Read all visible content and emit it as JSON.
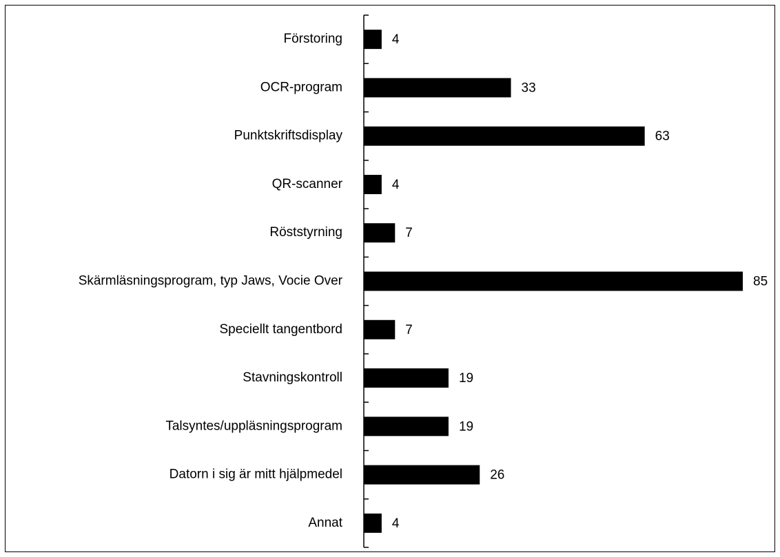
{
  "chart_data": {
    "type": "barh",
    "categories": [
      "Förstoring",
      "OCR-program",
      "Punktskriftsdisplay",
      "QR-scanner",
      "Röststyrning",
      "Skärmläsningsprogram, typ Jaws, Vocie Over",
      "Speciellt tangentbord",
      "Stavningskontroll",
      "Talsyntes/uppläsningsprogram",
      "Datorn i sig är mitt hjälpmedel",
      "Annat"
    ],
    "values": [
      4,
      33,
      63,
      4,
      7,
      85,
      7,
      19,
      19,
      26,
      4
    ],
    "color": "#000000"
  }
}
